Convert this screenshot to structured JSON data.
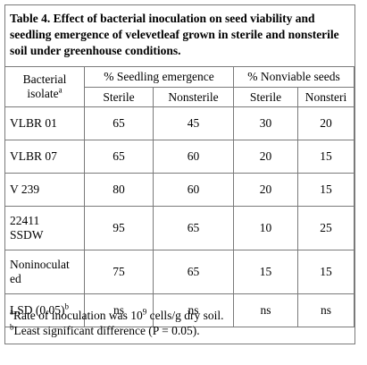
{
  "caption": "Table 4. Effect of bacterial inoculation on seed viability and seedling emergence of velevetleaf grown in sterile and nonsterile soil under greenhouse conditions.",
  "header": {
    "isolate_line1": "Bacterial",
    "isolate_line2": "isolate",
    "isolate_sup": "a",
    "group_emergence": "% Seedling emergence",
    "group_nonviable": "% Nonviable seeds",
    "sub_sterile_1": "Sterile",
    "sub_nonsterile_1": "Nonsterile",
    "sub_sterile_2": "Sterile",
    "sub_nonsterile_2": "Nonsteri"
  },
  "rows": [
    {
      "isolate": "VLBR 01",
      "em_sterile": "65",
      "em_nonsterile": "45",
      "nv_sterile": "30",
      "nv_nonsterile": "20"
    },
    {
      "isolate": "VLBR 07",
      "em_sterile": "65",
      "em_nonsterile": "60",
      "nv_sterile": "20",
      "nv_nonsterile": "15"
    },
    {
      "isolate": "V 239",
      "em_sterile": "80",
      "em_nonsterile": "60",
      "nv_sterile": "20",
      "nv_nonsterile": "15"
    },
    {
      "isolate_line1": "22411",
      "isolate_line2": "SSDW",
      "em_sterile": "95",
      "em_nonsterile": "65",
      "nv_sterile": "10",
      "nv_nonsterile": "25"
    },
    {
      "isolate_line1": "Noninoculat",
      "isolate_line2": "ed",
      "em_sterile": "75",
      "em_nonsterile": "65",
      "nv_sterile": "15",
      "nv_nonsterile": "15"
    },
    {
      "isolate": "LSD (0.05)",
      "isolate_sup": "b",
      "em_sterile": "ns",
      "em_nonsterile": "ns",
      "nv_sterile": "ns",
      "nv_nonsterile": "ns"
    }
  ],
  "footnotes": {
    "a_mark": "a",
    "a_text_before": "Rate of inoculation was 10",
    "a_exp": "9",
    "a_text_after": " cells/g dry soil.",
    "b_mark": "b",
    "b_text": "Least significant difference (P = 0.05)."
  }
}
